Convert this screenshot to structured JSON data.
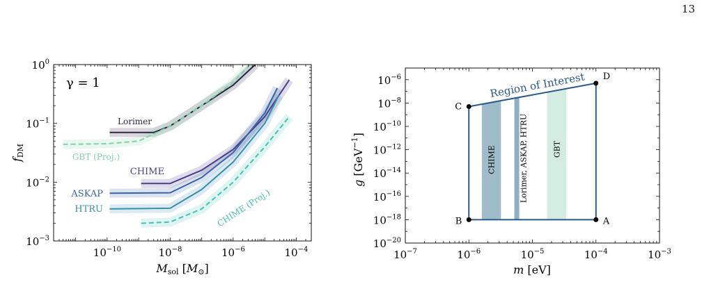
{
  "page": {
    "number": "13"
  },
  "chart_data": [
    {
      "type": "line",
      "annotation": "γ = 1",
      "xlabel": "M_sol [M_⊙]",
      "ylabel": "f_DM",
      "x_scale": "log",
      "y_scale": "log",
      "xlim": [
        2e-12,
        0.0003
      ],
      "ylim": [
        0.001,
        1
      ],
      "x_ticks": [
        {
          "exp": "-10",
          "value": 1e-10
        },
        {
          "exp": "-8",
          "value": 1e-08
        },
        {
          "exp": "-6",
          "value": 1e-06
        },
        {
          "exp": "-4",
          "value": 0.0001
        }
      ],
      "y_ticks": [
        {
          "exp": "0",
          "value": 1
        },
        {
          "exp": "-1",
          "value": 0.1
        },
        {
          "exp": "-2",
          "value": 0.01
        },
        {
          "exp": "-3",
          "value": 0.001
        }
      ],
      "series": [
        {
          "name": "Lorimer",
          "color": "#2e2440",
          "dashed": false,
          "x": [
            1.2e-10,
            3e-09,
            1e-08,
            1e-07,
            1e-06,
            5e-06
          ],
          "y": [
            0.07,
            0.07,
            0.09,
            0.2,
            0.45,
            1.0
          ]
        },
        {
          "name": "GBT (Proj.)",
          "color": "#7fd3a9",
          "dashed": true,
          "x": [
            4e-12,
            1e-10,
            1e-09,
            1e-08,
            1e-07,
            1e-06,
            3.5e-06
          ],
          "y": [
            0.044,
            0.045,
            0.05,
            0.09,
            0.2,
            0.5,
            1.0
          ]
        },
        {
          "name": "CHIME",
          "color": "#4a3f8c",
          "dashed": false,
          "x": [
            1.2e-09,
            1e-08,
            1e-07,
            1e-06,
            1e-05,
            6e-05
          ],
          "y": [
            0.0095,
            0.0095,
            0.016,
            0.036,
            0.13,
            0.55
          ]
        },
        {
          "name": "ASKAP",
          "color": "#3a62a8",
          "dashed": false,
          "x": [
            1.2e-10,
            1e-08,
            1e-07,
            1e-06,
            1e-05,
            2.5e-05
          ],
          "y": [
            0.0065,
            0.0066,
            0.012,
            0.032,
            0.15,
            0.4
          ]
        },
        {
          "name": "HTRU",
          "color": "#3a8fb0",
          "dashed": false,
          "x": [
            1.2e-10,
            1e-08,
            1e-07,
            1e-06,
            1e-05,
            2.8e-05
          ],
          "y": [
            0.0035,
            0.0036,
            0.0075,
            0.022,
            0.1,
            0.3
          ]
        },
        {
          "name": "CHIME (Proj.)",
          "color": "#46c2b0",
          "dashed": true,
          "x": [
            1.2e-09,
            1e-08,
            1e-07,
            1e-06,
            1e-05,
            6e-05
          ],
          "y": [
            0.002,
            0.0021,
            0.0035,
            0.01,
            0.04,
            0.13
          ]
        }
      ]
    },
    {
      "type": "diagram",
      "xlabel": "m [eV]",
      "ylabel": "g [GeV^-1]",
      "x_scale": "log",
      "y_scale": "log",
      "xlim": [
        1e-07,
        0.001
      ],
      "ylim": [
        1e-20,
        1e-05
      ],
      "x_ticks": [
        {
          "exp": "-7",
          "value": 1e-07
        },
        {
          "exp": "-6",
          "value": 1e-06
        },
        {
          "exp": "-5",
          "value": 1e-05
        },
        {
          "exp": "-4",
          "value": 0.0001
        },
        {
          "exp": "-3",
          "value": 0.001
        }
      ],
      "y_ticks": [
        {
          "exp": "-6",
          "value": 1e-06
        },
        {
          "exp": "-8",
          "value": 1e-08
        },
        {
          "exp": "-10",
          "value": 1e-10
        },
        {
          "exp": "-12",
          "value": 1e-12
        },
        {
          "exp": "-14",
          "value": 1e-14
        },
        {
          "exp": "-16",
          "value": 1e-16
        },
        {
          "exp": "-18",
          "value": 1e-18
        },
        {
          "exp": "-20",
          "value": 1e-20
        }
      ],
      "region_label": "Region of Interest",
      "region_color": "#2a5a8c",
      "points": [
        {
          "label": "A",
          "m": 0.0001,
          "g": 1e-18
        },
        {
          "label": "B",
          "m": 1e-06,
          "g": 1e-18
        },
        {
          "label": "C",
          "m": 1e-06,
          "g": 5e-09
        },
        {
          "label": "D",
          "m": 0.0001,
          "g": 5e-07
        }
      ],
      "bands": [
        {
          "label": "CHIME",
          "m_min": 1.6e-06,
          "m_max": 3.2e-06,
          "color": "#9fbccb"
        },
        {
          "label": "Lorimer, ASKAP, HTRU",
          "m_min": 5.2e-06,
          "m_max": 6.2e-06,
          "color": "#8fb0c2"
        },
        {
          "label": "GBT",
          "m_min": 1.7e-05,
          "m_max": 3.4e-05,
          "color": "#d4ede2"
        }
      ]
    }
  ]
}
